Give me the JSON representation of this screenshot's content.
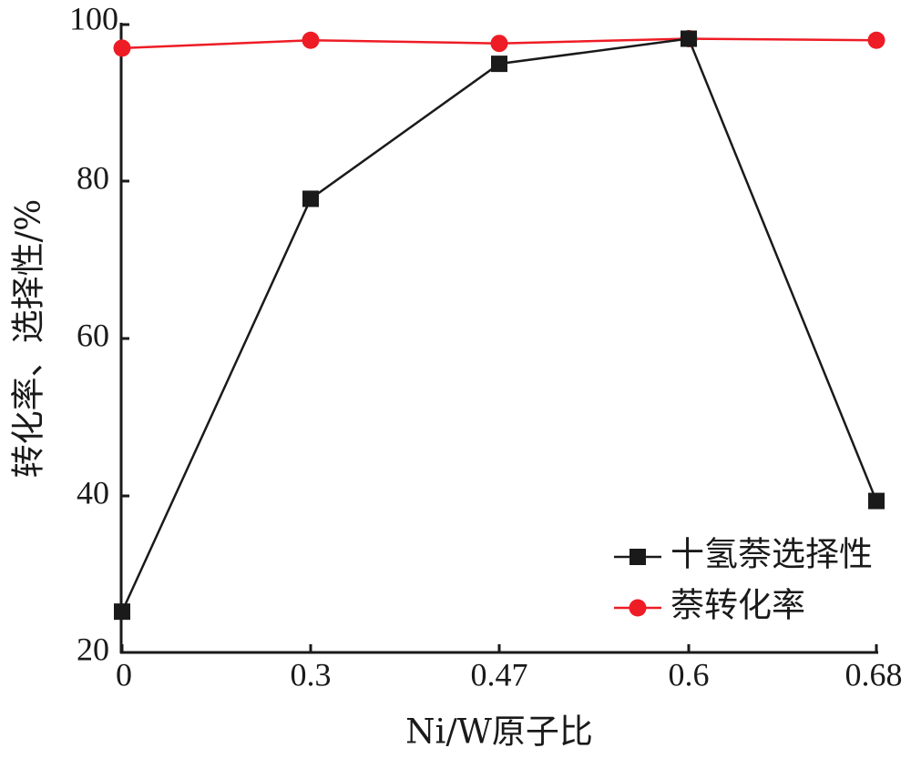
{
  "chart_data": {
    "type": "line",
    "x": [
      "0",
      "0.3",
      "0.47",
      "0.6",
      "0.68"
    ],
    "xlabel": "Ni/W原子比",
    "ylabel": "转化率、选择性/%",
    "ylim": [
      20,
      100
    ],
    "yticks": [
      "20",
      "40",
      "60",
      "80",
      "100"
    ],
    "grid": false,
    "legend_position": "bottom-right",
    "series": [
      {
        "name": "十氢萘选择性",
        "values": [
          25.2,
          77.8,
          95.0,
          98.2,
          39.3
        ],
        "color": "#1a1a1a",
        "marker": "square"
      },
      {
        "name": "萘转化率",
        "values": [
          97.0,
          98.0,
          97.6,
          98.2,
          98.0
        ],
        "color": "#ee1c25",
        "marker": "circle"
      }
    ]
  }
}
